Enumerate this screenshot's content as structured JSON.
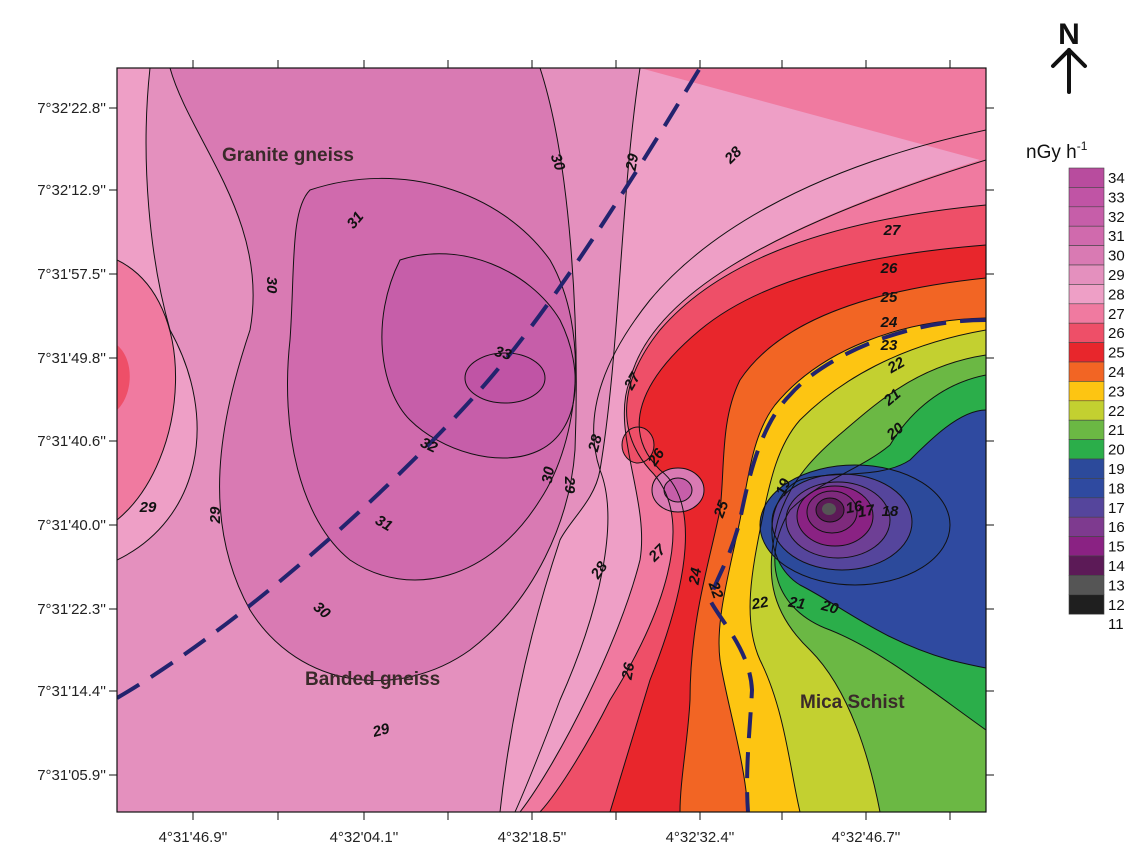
{
  "map": {
    "y_ticks": [
      "7°32'22.8''",
      "7°32'12.9''",
      "7°31'57.5''",
      "7°31'49.8''",
      "7°31'40.6''",
      "7°31'40.0''",
      "7°31'22.3''",
      "7°31'14.4''",
      "7°31'05.9''"
    ],
    "x_ticks": [
      "4°31'46.9''",
      "4°32'04.1''",
      "4°32'18.5''",
      "4°32'32.4''",
      "4°32'46.7''"
    ],
    "rock_units": [
      "Granite gneiss",
      "Banded gneiss",
      "Mica Schist"
    ],
    "contour_labels": [
      "30",
      "29",
      "28",
      "27",
      "26",
      "25",
      "24",
      "23",
      "22",
      "21",
      "20",
      "31",
      "30",
      "33",
      "32",
      "31",
      "30",
      "29",
      "29",
      "28",
      "30",
      "29",
      "28",
      "27",
      "26",
      "25",
      "24",
      "22",
      "22",
      "21",
      "20",
      "19",
      "18",
      "17",
      "16",
      "27",
      "26",
      "29"
    ],
    "north_symbol": "N",
    "north_arrow_icon": "arrow-up-icon"
  },
  "legend": {
    "unit_main": "nGy h",
    "unit_sup": "-1",
    "entries": [
      "34",
      "33",
      "32",
      "31",
      "30",
      "29",
      "28",
      "27",
      "26",
      "25",
      "24",
      "23",
      "22",
      "21",
      "20",
      "19",
      "18",
      "17",
      "16",
      "15",
      "14",
      "13",
      "12",
      "11"
    ],
    "colors": [
      "#b84c9e",
      "#c054a5",
      "#c65ea9",
      "#d06aad",
      "#d97ab3",
      "#e490be",
      "#ee9fc6",
      "#f07aa0",
      "#ee4f68",
      "#e8262c",
      "#f26524",
      "#fdc512",
      "#c3d030",
      "#6bb844",
      "#2bae4a",
      "#2c4a9b",
      "#2f4aa0",
      "#55459c",
      "#7e3a8f",
      "#8a2283",
      "#5c1a57",
      "#555555",
      "#1f1f1f"
    ]
  }
}
